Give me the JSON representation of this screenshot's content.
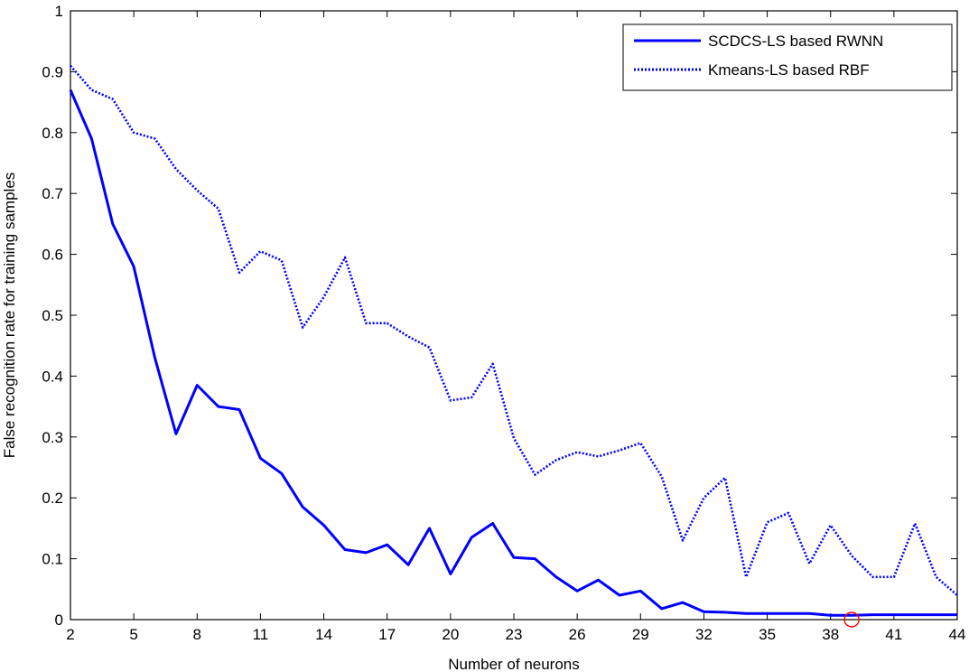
{
  "chart_data": {
    "type": "line",
    "xlabel": "Number of neurons",
    "ylabel": "False recognition rate for training samples",
    "xlim": [
      2,
      44
    ],
    "ylim": [
      0,
      1
    ],
    "xticks": [
      2,
      5,
      8,
      11,
      14,
      17,
      20,
      23,
      26,
      29,
      32,
      35,
      38,
      41,
      44
    ],
    "yticks": [
      0,
      0.1,
      0.2,
      0.3,
      0.4,
      0.5,
      0.6,
      0.7,
      0.8,
      0.9,
      1
    ],
    "ytick_labels": [
      "0",
      "0.1",
      "0.2",
      "0.3",
      "0.4",
      "0.5",
      "0.6",
      "0.7",
      "0.8",
      "0.9",
      "1"
    ],
    "legend_position": "top-right",
    "grid": false,
    "x": [
      2,
      3,
      4,
      5,
      6,
      7,
      8,
      9,
      10,
      11,
      12,
      13,
      14,
      15,
      16,
      17,
      18,
      19,
      20,
      21,
      22,
      23,
      24,
      25,
      26,
      27,
      28,
      29,
      30,
      31,
      32,
      33,
      34,
      35,
      36,
      37,
      38,
      39,
      40,
      41,
      42,
      43,
      44
    ],
    "series": [
      {
        "name": "SCDCS-LS based RWNN",
        "style": "solid",
        "color": "#0000ff",
        "values": [
          0.87,
          0.79,
          0.65,
          0.58,
          0.43,
          0.305,
          0.385,
          0.35,
          0.345,
          0.265,
          0.24,
          0.185,
          0.155,
          0.115,
          0.11,
          0.123,
          0.09,
          0.15,
          0.075,
          0.135,
          0.158,
          0.102,
          0.1,
          0.07,
          0.047,
          0.065,
          0.04,
          0.047,
          0.018,
          0.028,
          0.013,
          0.012,
          0.01,
          0.01,
          0.01,
          0.01,
          0.007,
          0.007,
          0.008,
          0.008,
          0.008,
          0.008,
          0.008
        ]
      },
      {
        "name": "Kmeans-LS based RBF",
        "style": "dotted",
        "color": "#0000ff",
        "values": [
          0.91,
          0.87,
          0.855,
          0.8,
          0.79,
          0.74,
          0.705,
          0.675,
          0.57,
          0.605,
          0.59,
          0.48,
          0.53,
          0.595,
          0.487,
          0.487,
          0.465,
          0.447,
          0.36,
          0.365,
          0.42,
          0.298,
          0.238,
          0.262,
          0.275,
          0.268,
          0.278,
          0.29,
          0.235,
          0.13,
          0.2,
          0.233,
          0.07,
          0.16,
          0.175,
          0.092,
          0.155,
          0.105,
          0.07,
          0.07,
          0.158,
          0.07,
          0.04
        ]
      }
    ],
    "marker": {
      "shape": "circle",
      "color": "#ff0000",
      "x": 39,
      "y": 0
    }
  }
}
